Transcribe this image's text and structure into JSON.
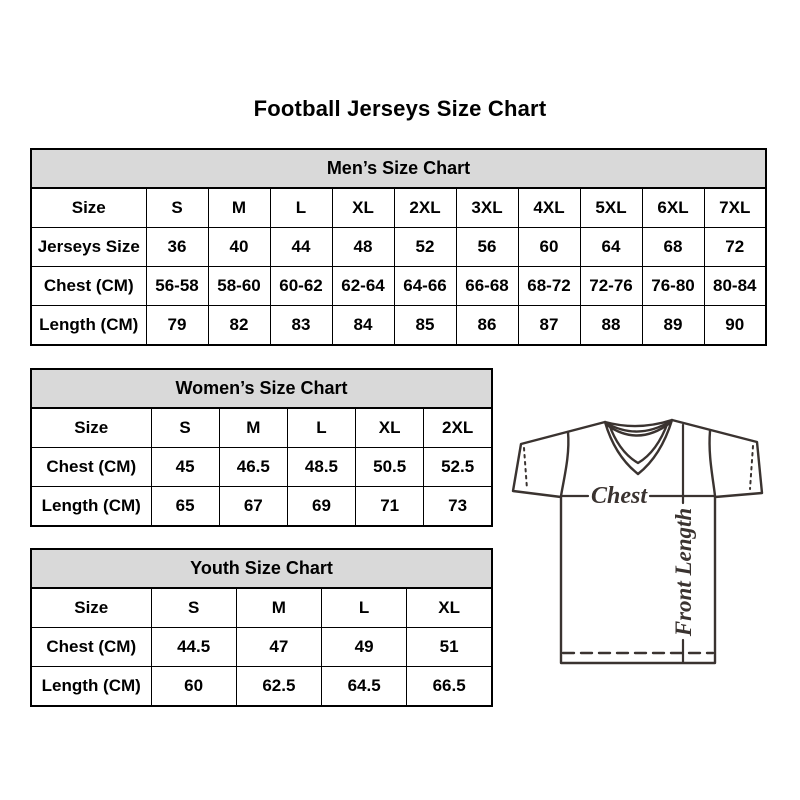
{
  "page_title": "Football Jerseys Size Chart",
  "colors": {
    "header_band_bg": "#d9d9d9",
    "table_border": "#000000",
    "text": "#000000",
    "jersey_line": "#3a3330"
  },
  "tables": {
    "mens": {
      "title": "Men’s Size Chart",
      "rows": [
        [
          "Size",
          "S",
          "M",
          "L",
          "XL",
          "2XL",
          "3XL",
          "4XL",
          "5XL",
          "6XL",
          "7XL"
        ],
        [
          "Jerseys Size",
          "36",
          "40",
          "44",
          "48",
          "52",
          "56",
          "60",
          "64",
          "68",
          "72"
        ],
        [
          "Chest (CM)",
          "56-58",
          "58-60",
          "60-62",
          "62-64",
          "64-66",
          "66-68",
          "68-72",
          "72-76",
          "76-80",
          "80-84"
        ],
        [
          "Length (CM)",
          "79",
          "82",
          "83",
          "84",
          "85",
          "86",
          "87",
          "88",
          "89",
          "90"
        ]
      ]
    },
    "womens": {
      "title": "Women’s Size Chart",
      "rows": [
        [
          "Size",
          "S",
          "M",
          "L",
          "XL",
          "2XL"
        ],
        [
          "Chest (CM)",
          "45",
          "46.5",
          "48.5",
          "50.5",
          "52.5"
        ],
        [
          "Length (CM)",
          "65",
          "67",
          "69",
          "71",
          "73"
        ]
      ]
    },
    "youth": {
      "title": "Youth Size Chart",
      "rows": [
        [
          "Size",
          "S",
          "M",
          "L",
          "XL"
        ],
        [
          "Chest (CM)",
          "44.5",
          "47",
          "49",
          "51"
        ],
        [
          "Length (CM)",
          "60",
          "62.5",
          "64.5",
          "66.5"
        ]
      ]
    }
  },
  "jersey_diagram": {
    "chest_label": "Chest",
    "front_length_label": "Front Length"
  }
}
